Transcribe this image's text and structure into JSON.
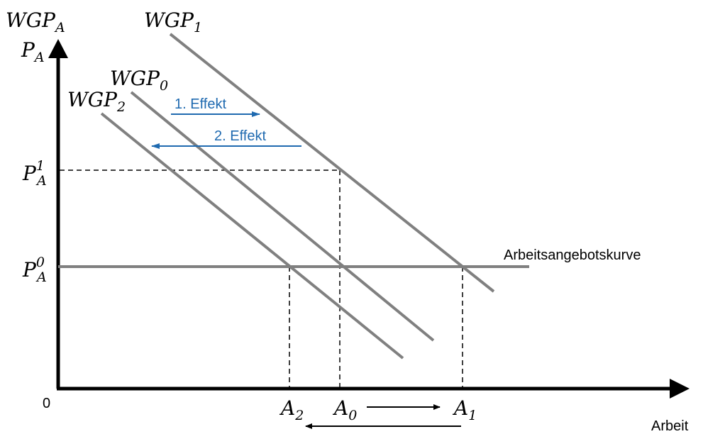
{
  "axes": {
    "y_label_main": "WGP",
    "y_label_main_sub": "A",
    "y_label_price": "P",
    "y_label_price_sub": "A",
    "x_label": "Arbeit",
    "origin": "0"
  },
  "curves": {
    "wgp1": {
      "name": "WGP",
      "sub": "1"
    },
    "wgp0": {
      "name": "WGP",
      "sub": "0"
    },
    "wgp2": {
      "name": "WGP",
      "sub": "2"
    },
    "supply": {
      "label": "Arbeitsangebotskurve"
    }
  },
  "price_levels": {
    "p1": {
      "name": "P",
      "sub": "A",
      "sup": "1"
    },
    "p0": {
      "name": "P",
      "sub": "A",
      "sup": "0"
    }
  },
  "quantity_levels": {
    "a2": {
      "name": "A",
      "sub": "2"
    },
    "a0": {
      "name": "A",
      "sub": "0"
    },
    "a1": {
      "name": "A",
      "sub": "1"
    }
  },
  "effects": {
    "first": "1. Effekt",
    "second": "2. Effekt"
  },
  "colors": {
    "axis": "#000000",
    "curve": "#808080",
    "effect": "#1f6ab0"
  }
}
